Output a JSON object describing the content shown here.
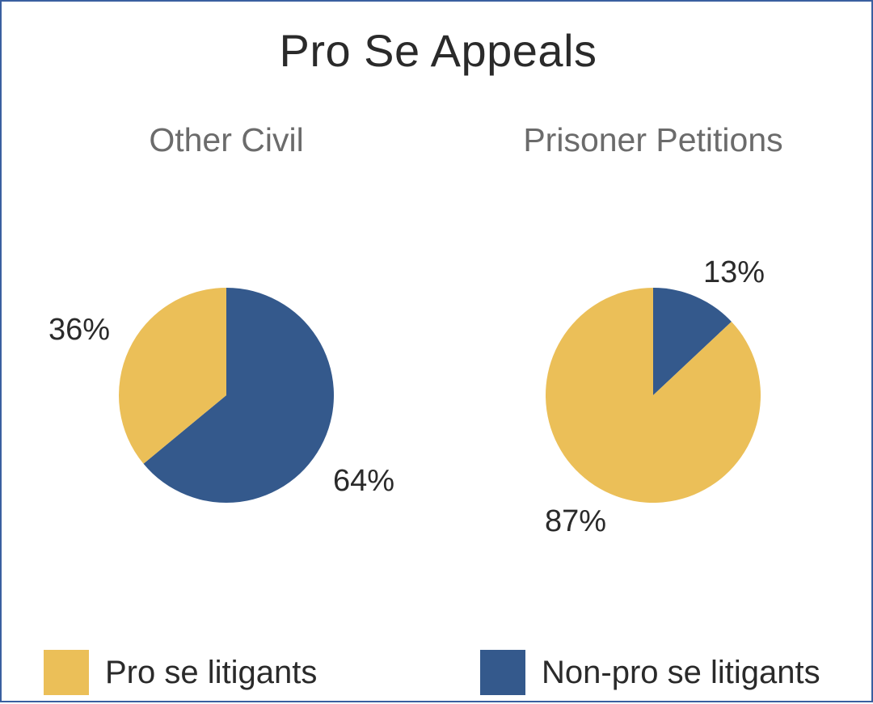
{
  "title": "Pro Se Appeals",
  "colors": {
    "pro_se": "#ebbf58",
    "non_pro_se": "#34598c"
  },
  "legend": [
    {
      "label": "Pro se litigants",
      "color": "#ebbf58"
    },
    {
      "label": "Non-pro se litigants",
      "color": "#34598c"
    }
  ],
  "chart_data": [
    {
      "type": "pie",
      "title": "Other Civil",
      "slices": [
        {
          "label": "Pro se litigants",
          "value": 36,
          "display": "36%",
          "color": "#ebbf58"
        },
        {
          "label": "Non-pro se litigants",
          "value": 64,
          "display": "64%",
          "color": "#34598c"
        }
      ]
    },
    {
      "type": "pie",
      "title": "Prisoner Petitions",
      "slices": [
        {
          "label": "Pro se litigants",
          "value": 87,
          "display": "87%",
          "color": "#ebbf58"
        },
        {
          "label": "Non-pro se litigants",
          "value": 13,
          "display": "13%",
          "color": "#34598c"
        }
      ]
    }
  ]
}
